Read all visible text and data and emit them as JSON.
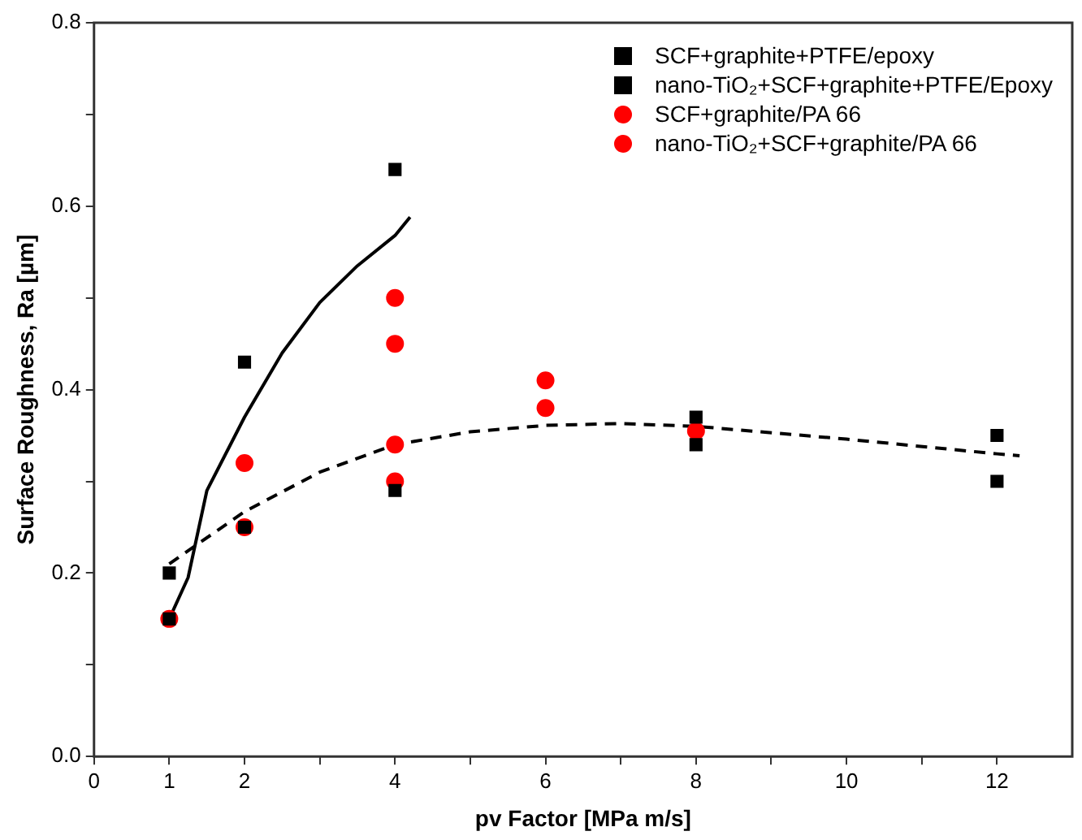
{
  "chart_data": {
    "type": "scatter",
    "xlabel": "pv Factor [MPa m/s]",
    "ylabel": "Surface Roughness, Ra [µm]",
    "xlim": [
      0,
      13
    ],
    "xticks": [
      0,
      1,
      2,
      {
        "value": 3,
        "label": null
      },
      4,
      {
        "value": 5,
        "label": null
      },
      6,
      {
        "value": 7,
        "label": null
      },
      8,
      {
        "value": 9,
        "label": null
      },
      10,
      {
        "value": 11,
        "label": null
      },
      12
    ],
    "ylim": [
      0,
      0.8
    ],
    "yticks": [
      {
        "value": 0,
        "label": "0.0"
      },
      {
        "value": 0.1,
        "label": null
      },
      0.2,
      {
        "value": 0.3,
        "label": null
      },
      0.4,
      {
        "value": 0.5,
        "label": null
      },
      0.6,
      {
        "value": 0.7,
        "label": null
      },
      0.8
    ],
    "grid": false,
    "legend": "top right",
    "series": [
      {
        "name": "SCF+graphite+PTFE/epoxy",
        "color": "#000000",
        "marker": "square",
        "x": [
          1,
          2,
          4
        ],
        "values": [
          0.15,
          0.43,
          0.64
        ]
      },
      {
        "name": "nano-TiO₂+SCF+graphite+PTFE/Epoxy",
        "color": "#000000",
        "marker": "square",
        "x": [
          1,
          2,
          4,
          8,
          8,
          12,
          12
        ],
        "values": [
          0.2,
          0.25,
          0.29,
          0.37,
          0.34,
          0.35,
          0.3
        ]
      },
      {
        "name": "SCF+graphite/PA 66",
        "color": "#ff0000",
        "marker": "circle",
        "x": [
          1,
          2,
          4,
          4,
          6,
          8
        ],
        "values": [
          0.15,
          0.32,
          0.5,
          0.45,
          0.41,
          0.355
        ]
      },
      {
        "name": "nano-TiO₂+SCF+graphite/PA 66",
        "color": "#ff0000",
        "marker": "circle",
        "x": [
          2,
          4,
          4,
          6
        ],
        "values": [
          0.25,
          0.34,
          0.3,
          0.38
        ]
      },
      {
        "type": "line",
        "color": "#000000",
        "marker": "none",
        "line_style": "solid",
        "x": [
          1,
          1.25,
          1.5,
          2,
          2.5,
          3,
          3.5,
          4,
          4.2
        ],
        "values": [
          0.15,
          0.195,
          0.29,
          0.37,
          0.44,
          0.495,
          0.535,
          0.568,
          0.588
        ]
      },
      {
        "type": "line",
        "color": "#000000",
        "marker": "none",
        "line_style": "dashed",
        "x": [
          1,
          2,
          3,
          4,
          5,
          6,
          7,
          8,
          10,
          12,
          12.3
        ],
        "values": [
          0.21,
          0.267,
          0.31,
          0.34,
          0.354,
          0.361,
          0.363,
          0.36,
          0.346,
          0.33,
          0.328
        ]
      }
    ]
  }
}
